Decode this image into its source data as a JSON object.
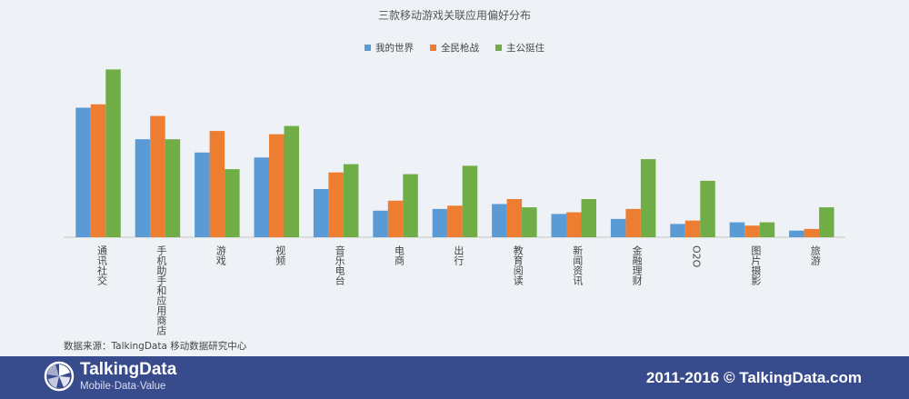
{
  "chart_data": {
    "type": "bar",
    "title": "三款移动游戏关联应用偏好分布",
    "categories": [
      "通讯社交",
      "手机助手和应用商店",
      "游戏",
      "视频",
      "音乐电台",
      "电商",
      "出行",
      "教育阅读",
      "新闻资讯",
      "金融理财",
      "O2O",
      "图片摄影",
      "旅游"
    ],
    "series": [
      {
        "name": "我的世界",
        "color": "#5b9bd5",
        "values": [
          78,
          59,
          51,
          48,
          29,
          16,
          17,
          20,
          14,
          11,
          8,
          9,
          4
        ]
      },
      {
        "name": "全民枪战",
        "color": "#ed7d31",
        "values": [
          80,
          73,
          64,
          62,
          39,
          22,
          19,
          23,
          15,
          17,
          10,
          7,
          5
        ]
      },
      {
        "name": "主公挺住",
        "color": "#70ad47",
        "values": [
          101,
          59,
          41,
          67,
          44,
          38,
          43,
          18,
          23,
          47,
          34,
          9,
          18
        ]
      }
    ],
    "ylim": [
      0,
      110
    ],
    "legend": "top-center",
    "grid": false,
    "xlabel": "",
    "ylabel": ""
  },
  "source_text": "数据来源：TalkingData   移动数据研究中心",
  "footer": {
    "brand": "TalkingData",
    "tagline": "Mobile·Data·Value",
    "copyright": "2011-2016 © TalkingData.com"
  }
}
